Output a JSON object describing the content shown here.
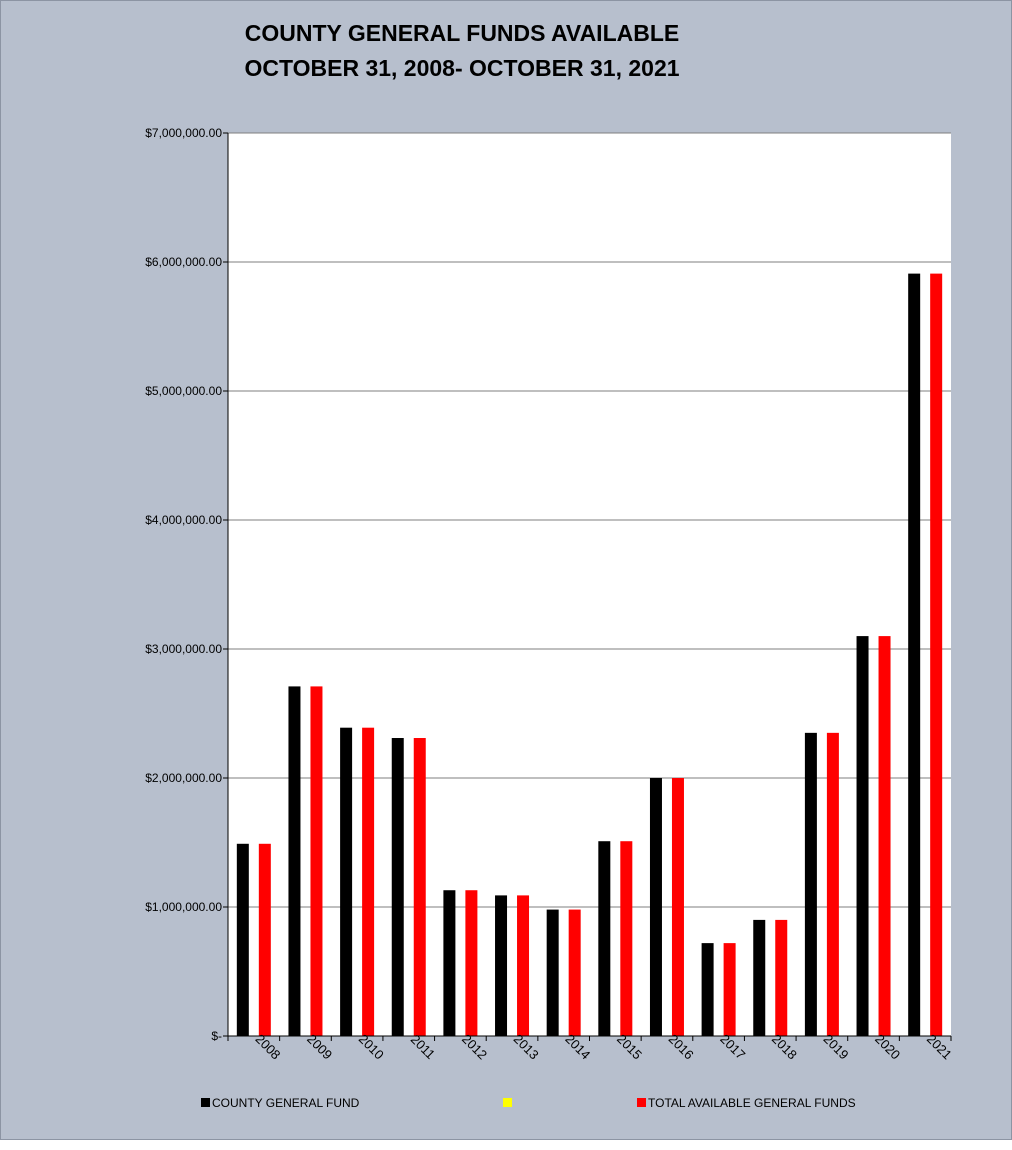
{
  "chart_data": {
    "type": "bar",
    "title": "COUNTY GENERAL FUNDS AVAILABLE",
    "subtitle": "OCTOBER 31, 2008- OCTOBER 31, 2021",
    "xlabel": "",
    "ylabel": "",
    "ylim": [
      0,
      7000000
    ],
    "grid": true,
    "legend_position": "bottom",
    "categories": [
      "2008",
      "2009",
      "2010",
      "2011",
      "2012",
      "2013",
      "2014",
      "2015",
      "2016",
      "2017",
      "2018",
      "2019",
      "2020",
      "2021"
    ],
    "y_ticks": [
      {
        "value": 0,
        "label": "$-"
      },
      {
        "value": 1000000,
        "label": "$1,000,000.00"
      },
      {
        "value": 2000000,
        "label": "$2,000,000.00"
      },
      {
        "value": 3000000,
        "label": "$3,000,000.00"
      },
      {
        "value": 4000000,
        "label": "$4,000,000.00"
      },
      {
        "value": 5000000,
        "label": "$5,000,000.00"
      },
      {
        "value": 6000000,
        "label": "$6,000,000.00"
      },
      {
        "value": 7000000,
        "label": "$7,000,000.00"
      }
    ],
    "series": [
      {
        "name": "COUNTY GENERAL FUND",
        "color": "#000000",
        "values": [
          1490000,
          2710000,
          2390000,
          2310000,
          1130000,
          1090000,
          980000,
          1510000,
          2000000,
          720000,
          900000,
          2350000,
          3100000,
          5910000
        ]
      },
      {
        "name": "",
        "color": "#ffff00",
        "values": [
          0,
          0,
          0,
          0,
          0,
          0,
          0,
          0,
          0,
          0,
          0,
          0,
          0,
          0
        ]
      },
      {
        "name": "TOTAL AVAILABLE GENERAL FUNDS",
        "color": "#ff0000",
        "values": [
          1490000,
          2710000,
          2390000,
          2310000,
          1130000,
          1090000,
          980000,
          1510000,
          2000000,
          720000,
          900000,
          2350000,
          3100000,
          5910000
        ]
      }
    ],
    "colors": {
      "background": "#b7bfcd",
      "plot_area": "#ffffff",
      "gridline": "#7f7f7f"
    }
  }
}
